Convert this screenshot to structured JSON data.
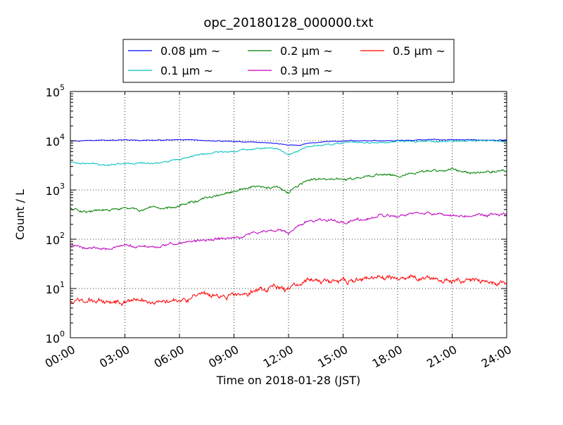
{
  "chart_data": {
    "type": "line",
    "title": "opc_20180128_000000.txt",
    "xlabel": "Time on 2018-01-28 (JST)",
    "ylabel": "Count / L",
    "yscale": "log",
    "ylim": [
      1,
      100000
    ],
    "xlim": [
      "00:00",
      "24:00"
    ],
    "grid": true,
    "legend_position": "top-center",
    "x_ticks": [
      "00:00",
      "03:00",
      "06:00",
      "09:00",
      "12:00",
      "15:00",
      "18:00",
      "21:00",
      "24:00"
    ],
    "y_ticks": [
      {
        "base": "10",
        "exp": "0"
      },
      {
        "base": "10",
        "exp": "1"
      },
      {
        "base": "10",
        "exp": "2"
      },
      {
        "base": "10",
        "exp": "3"
      },
      {
        "base": "10",
        "exp": "4"
      },
      {
        "base": "10",
        "exp": "5"
      }
    ],
    "x_hours": [
      0,
      1,
      2,
      3,
      4,
      5,
      6,
      7,
      8,
      9,
      10,
      11,
      11.5,
      12,
      12.5,
      13,
      14,
      15,
      16,
      17,
      18,
      19,
      20,
      21,
      22,
      23,
      24
    ],
    "series": [
      {
        "name": "0.08 μm ~",
        "color": "#0000ff",
        "values": [
          10000,
          10100,
          10200,
          10200,
          10200,
          10200,
          10300,
          10100,
          9900,
          9600,
          9400,
          9100,
          8600,
          8200,
          7900,
          8700,
          9600,
          9800,
          10000,
          10000,
          10100,
          10300,
          10500,
          10400,
          10300,
          10300,
          10300
        ]
      },
      {
        "name": "0.1 μm ~",
        "color": "#00bfbf",
        "values": [
          3700,
          3400,
          3300,
          3500,
          3500,
          3600,
          4000,
          5200,
          5700,
          6200,
          6900,
          7200,
          6500,
          5300,
          6000,
          7500,
          8400,
          9000,
          9200,
          9300,
          9500,
          9700,
          9800,
          9800,
          9900,
          10000,
          10000
        ]
      },
      {
        "name": "0.2 μm ~",
        "color": "#008000",
        "values": [
          420,
          370,
          380,
          420,
          390,
          410,
          500,
          600,
          750,
          900,
          1150,
          1100,
          1100,
          850,
          1200,
          1550,
          1650,
          1650,
          1700,
          2100,
          2000,
          2150,
          2500,
          2600,
          2300,
          2400,
          2400
        ]
      },
      {
        "name": "0.3 μm ~",
        "color": "#bf00bf",
        "values": [
          75,
          67,
          68,
          72,
          70,
          72,
          85,
          92,
          100,
          105,
          130,
          150,
          160,
          130,
          180,
          230,
          240,
          230,
          250,
          290,
          290,
          320,
          330,
          310,
          300,
          310,
          310
        ]
      },
      {
        "name": "0.5 μm ~",
        "color": "#ff0000",
        "values": [
          5.7,
          5.6,
          5.5,
          5.7,
          5.7,
          5.6,
          6.3,
          6.8,
          6.8,
          7.2,
          8.5,
          11,
          11,
          9.5,
          12,
          14.5,
          14,
          14,
          15,
          16,
          16,
          17,
          16,
          14.5,
          14,
          13,
          12.5
        ]
      }
    ]
  }
}
